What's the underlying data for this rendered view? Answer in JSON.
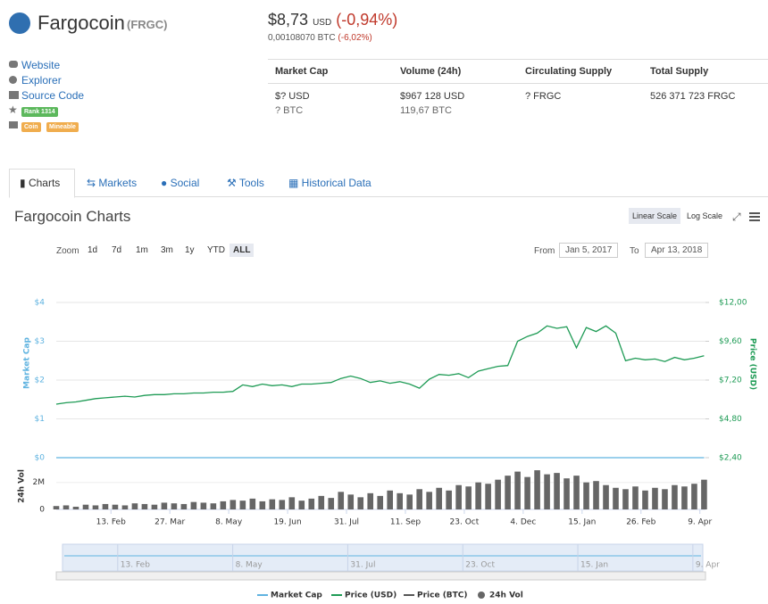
{
  "header": {
    "name": "Fargocoin",
    "symbol": "(FRGC)",
    "price": "$8,73",
    "currency": "USD",
    "change": "(-0,94%)",
    "btc_price": "0,00108070 BTC",
    "btc_change": "(-6,02%)"
  },
  "links": [
    "Website",
    "Explorer",
    "Source Code"
  ],
  "rank": "Rank 1314",
  "tags": [
    "Coin",
    "Mineable"
  ],
  "table": {
    "columns": [
      "Market Cap",
      "Volume (24h)",
      "Circulating Supply",
      "Total Supply"
    ],
    "cells": [
      [
        "$? USD",
        "? BTC"
      ],
      [
        "$967 128 USD",
        "119,67 BTC"
      ],
      [
        "? FRGC"
      ],
      [
        "526 371 723 FRGC"
      ]
    ]
  },
  "tabs": [
    "Charts",
    "Markets",
    "Social",
    "Tools",
    "Historical Data"
  ],
  "chart_section": {
    "scales": [
      "Linear Scale",
      "Log Scale"
    ],
    "zoom_label": "Zoom",
    "zoom": [
      "1d",
      "7d",
      "1m",
      "3m",
      "1y",
      "YTD",
      "ALL"
    ],
    "from_label": "From",
    "from": "Jan 5, 2017",
    "to_label": "To",
    "to": "Apr 13, 2018"
  },
  "chart_data": {
    "type": "line",
    "title": "Fargocoin Charts",
    "ylabel": "Market Cap",
    "y2label": "Price (USD)",
    "vol_label": "24h Vol",
    "x": [
      "2017-01-05",
      "2017-01-12",
      "2017-01-19",
      "2017-01-26",
      "2017-02-02",
      "2017-02-09",
      "2017-02-16",
      "2017-02-23",
      "2017-03-02",
      "2017-03-09",
      "2017-03-16",
      "2017-03-23",
      "2017-03-30",
      "2017-04-06",
      "2017-04-13",
      "2017-04-20",
      "2017-04-27",
      "2017-05-04",
      "2017-05-11",
      "2017-05-18",
      "2017-05-25",
      "2017-06-01",
      "2017-06-08",
      "2017-06-15",
      "2017-06-22",
      "2017-06-29",
      "2017-07-06",
      "2017-07-13",
      "2017-07-20",
      "2017-07-27",
      "2017-08-03",
      "2017-08-10",
      "2017-08-17",
      "2017-08-24",
      "2017-08-31",
      "2017-09-07",
      "2017-09-14",
      "2017-09-21",
      "2017-09-28",
      "2017-10-05",
      "2017-10-12",
      "2017-10-19",
      "2017-10-26",
      "2017-11-02",
      "2017-11-09",
      "2017-11-16",
      "2017-11-23",
      "2017-11-30",
      "2017-12-07",
      "2017-12-14",
      "2017-12-21",
      "2017-12-28",
      "2018-01-04",
      "2018-01-11",
      "2018-01-18",
      "2018-01-25",
      "2018-02-01",
      "2018-02-08",
      "2018-02-15",
      "2018-02-22",
      "2018-03-01",
      "2018-03-08",
      "2018-03-15",
      "2018-03-22",
      "2018-03-29",
      "2018-04-05",
      "2018-04-12"
    ],
    "xlim": [
      "2017-01-05",
      "2018-04-13"
    ],
    "xticks": [
      {
        "value": "2017-02-13",
        "label": "13. Feb"
      },
      {
        "value": "2017-03-27",
        "label": "27. Mar"
      },
      {
        "value": "2017-05-08",
        "label": "8. May"
      },
      {
        "value": "2017-06-19",
        "label": "19. Jun"
      },
      {
        "value": "2017-07-31",
        "label": "31. Jul"
      },
      {
        "value": "2017-09-11",
        "label": "11. Sep"
      },
      {
        "value": "2017-10-23",
        "label": "23. Oct"
      },
      {
        "value": "2017-12-04",
        "label": "4. Dec"
      },
      {
        "value": "2018-01-15",
        "label": "15. Jan"
      },
      {
        "value": "2018-02-26",
        "label": "26. Feb"
      },
      {
        "value": "2018-04-09",
        "label": "9. Apr"
      }
    ],
    "navigator_xticks": [
      {
        "value": "2017-02-13",
        "label": "13. Feb"
      },
      {
        "value": "2017-05-08",
        "label": "8. May"
      },
      {
        "value": "2017-07-31",
        "label": "31. Jul"
      },
      {
        "value": "2017-10-23",
        "label": "23. Oct"
      },
      {
        "value": "2018-01-15",
        "label": "15. Jan"
      },
      {
        "value": "2018-04-09",
        "label": "9. Apr"
      }
    ],
    "ylim": [
      0,
      4
    ],
    "yticks": [
      {
        "value": 0,
        "label": "$0"
      },
      {
        "value": 1,
        "label": "$1"
      },
      {
        "value": 2,
        "label": "$2"
      },
      {
        "value": 3,
        "label": "$3"
      },
      {
        "value": 4,
        "label": "$4"
      }
    ],
    "y2lim": [
      2.4,
      12
    ],
    "y2ticks": [
      {
        "value": 2.4,
        "label": "$2,40"
      },
      {
        "value": 4.8,
        "label": "$4,80"
      },
      {
        "value": 7.2,
        "label": "$7,20"
      },
      {
        "value": 9.6,
        "label": "$9,60"
      },
      {
        "value": 12,
        "label": "$12,00"
      }
    ],
    "vol_ylim": [
      0,
      3500000
    ],
    "vol_yticks": [
      0,
      {
        "value": 2000000,
        "label": "2M"
      }
    ],
    "grid": true,
    "series": [
      {
        "name": "Market Cap",
        "color": "#5fb3e0",
        "axis": "y",
        "values": [
          0,
          0,
          0,
          0,
          0,
          0,
          0,
          0,
          0,
          0,
          0,
          0,
          0,
          0,
          0,
          0,
          0,
          0,
          0,
          0,
          0,
          0,
          0,
          0,
          0,
          0,
          0,
          0,
          0,
          0,
          0,
          0,
          0,
          0,
          0,
          0,
          0,
          0,
          0,
          0,
          0,
          0,
          0,
          0,
          0,
          0,
          0,
          0,
          0,
          0,
          0,
          0,
          0,
          0,
          0,
          0,
          0,
          0,
          0,
          0,
          0,
          0,
          0,
          0,
          0,
          0,
          0
        ]
      },
      {
        "name": "Price (USD)",
        "color": "#1e9b55",
        "axis": "y2",
        "values": [
          5.71,
          5.8,
          5.85,
          5.95,
          6.05,
          6.1,
          6.15,
          6.2,
          6.15,
          6.25,
          6.3,
          6.3,
          6.35,
          6.35,
          6.4,
          6.4,
          6.45,
          6.45,
          6.5,
          6.9,
          6.8,
          6.95,
          6.85,
          6.9,
          6.8,
          6.95,
          6.95,
          7.0,
          7.05,
          7.3,
          7.45,
          7.3,
          7.05,
          7.15,
          7.0,
          7.1,
          6.95,
          6.7,
          7.25,
          7.55,
          7.5,
          7.6,
          7.35,
          7.75,
          7.9,
          8.05,
          8.1,
          9.6,
          9.9,
          10.1,
          10.55,
          10.4,
          10.5,
          9.2,
          10.45,
          10.2,
          10.55,
          10.1,
          8.4,
          8.55,
          8.45,
          8.5,
          8.35,
          8.6,
          8.45,
          8.55,
          8.7
        ]
      },
      {
        "name": "Price (BTC)",
        "color": "#555555",
        "axis": "y2",
        "values": [
          null,
          null,
          null,
          null,
          null,
          null,
          null,
          null,
          null,
          null,
          null,
          null,
          null,
          null,
          null,
          null,
          null,
          null,
          null,
          null,
          null,
          null,
          null,
          null,
          null,
          null,
          null,
          null,
          null,
          null,
          null,
          null,
          null,
          null,
          null,
          null,
          null,
          null,
          null,
          null,
          null,
          null,
          null,
          null,
          null,
          null,
          null,
          null,
          null,
          null,
          null,
          null,
          null,
          null,
          null,
          null,
          null,
          null,
          null,
          null,
          null,
          null,
          null,
          null,
          null,
          null,
          null
        ]
      },
      {
        "name": "24h Vol",
        "color": "#666666",
        "axis": "vol",
        "type": "bar",
        "values": [
          250000,
          300000,
          200000,
          350000,
          300000,
          400000,
          350000,
          300000,
          450000,
          400000,
          350000,
          500000,
          450000,
          400000,
          550000,
          500000,
          450000,
          600000,
          700000,
          650000,
          800000,
          600000,
          750000,
          700000,
          900000,
          650000,
          800000,
          1000000,
          850000,
          1300000,
          1100000,
          900000,
          1200000,
          1000000,
          1400000,
          1200000,
          1100000,
          1500000,
          1300000,
          1600000,
          1400000,
          1800000,
          1700000,
          2000000,
          1900000,
          2200000,
          2500000,
          2800000,
          2400000,
          2900000,
          2600000,
          2700000,
          2300000,
          2500000,
          2000000,
          2100000,
          1800000,
          1600000,
          1500000,
          1700000,
          1400000,
          1600000,
          1500000,
          1800000,
          1700000,
          1900000,
          2200000
        ]
      }
    ]
  }
}
